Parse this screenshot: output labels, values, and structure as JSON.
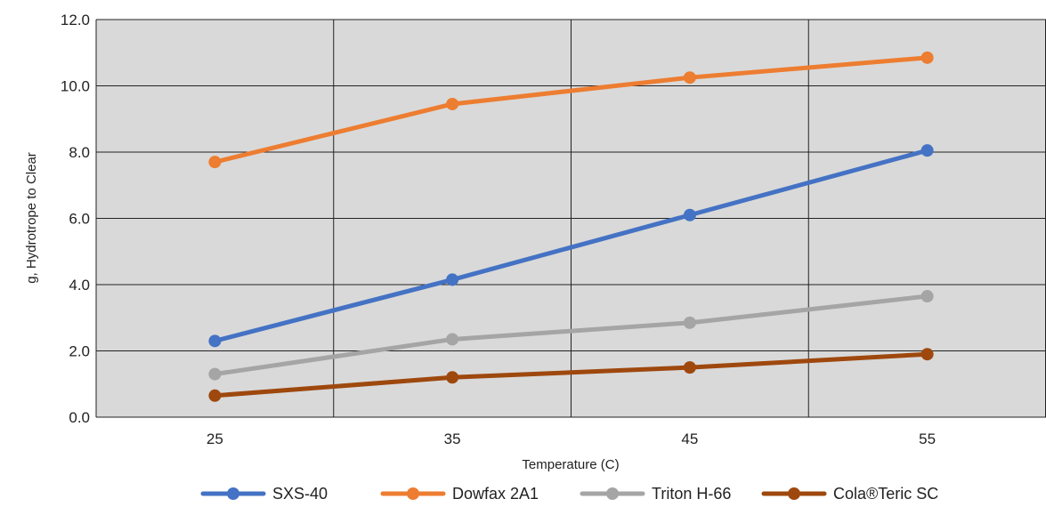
{
  "chart_data": {
    "type": "line",
    "title": "",
    "xlabel": "Temperature (C)",
    "ylabel": "g, Hydrotrope to Clear",
    "categories": [
      "25",
      "35",
      "45",
      "55"
    ],
    "yticks": [
      "0.0",
      "2.0",
      "4.0",
      "6.0",
      "8.0",
      "10.0",
      "12.0"
    ],
    "ylim": [
      0,
      12
    ],
    "grid": true,
    "legend_position": "bottom",
    "plot_background": "#d9d9d9",
    "series": [
      {
        "name": "SXS-40",
        "color": "#4472c4",
        "values": [
          2.3,
          4.15,
          6.1,
          8.05
        ]
      },
      {
        "name": "Dowfax 2A1",
        "color": "#ed7d31",
        "values": [
          7.7,
          9.45,
          10.25,
          10.85
        ]
      },
      {
        "name": "Triton H-66",
        "color": "#a5a5a5",
        "values": [
          1.3,
          2.35,
          2.85,
          3.65
        ]
      },
      {
        "name": "Cola®Teric SC",
        "color": "#9e480e",
        "values": [
          0.65,
          1.2,
          1.5,
          1.9
        ]
      }
    ]
  }
}
